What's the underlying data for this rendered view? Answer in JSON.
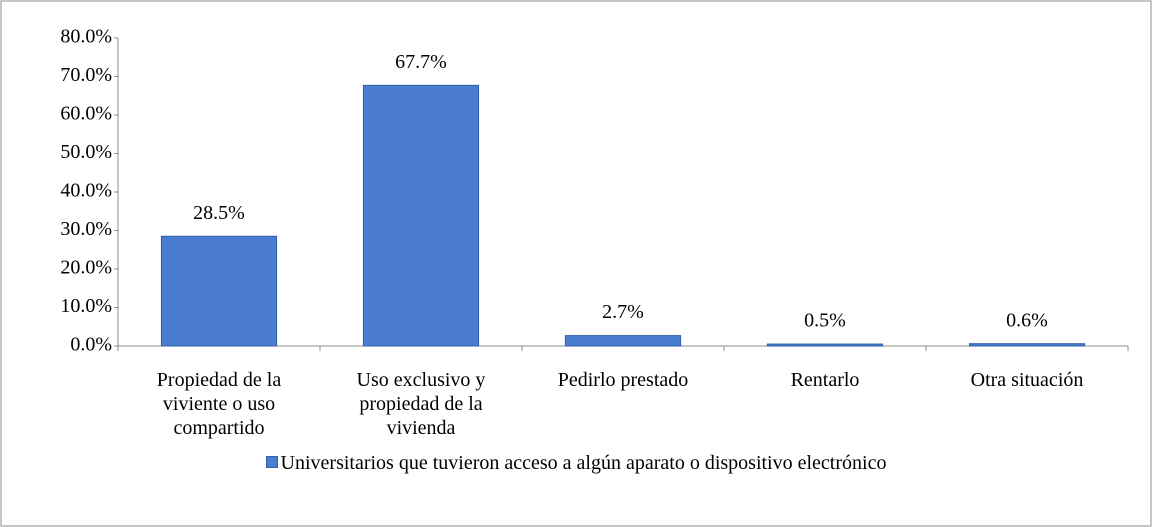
{
  "chart_data": {
    "type": "bar",
    "categories": [
      "Propiedad de la viviente o uso compartido",
      "Uso exclusivo y propiedad de la vivienda",
      "Pedirlo prestado",
      "Rentarlo",
      "Otra situación"
    ],
    "series": [
      {
        "name": "Universitarios que tuvieron acceso a algún aparato o dispositivo electrónico",
        "color": "#4a7dd0",
        "values": [
          28.5,
          67.7,
          2.7,
          0.5,
          0.6
        ],
        "value_labels": [
          "28.5%",
          "67.7%",
          "2.7%",
          "0.5%",
          "0.6%"
        ]
      }
    ],
    "ylim": [
      0,
      80
    ],
    "yticks": [
      {
        "value": 0,
        "label": "0.0%"
      },
      {
        "value": 10,
        "label": "10.0%"
      },
      {
        "value": 20,
        "label": "20.0%"
      },
      {
        "value": 30,
        "label": "30.0%"
      },
      {
        "value": 40,
        "label": "40.0%"
      },
      {
        "value": 50,
        "label": "50.0%"
      },
      {
        "value": 60,
        "label": "60.0%"
      },
      {
        "value": 70,
        "label": "70.0%"
      },
      {
        "value": 80,
        "label": "80.0%"
      }
    ],
    "grid": false,
    "legend": "bottom"
  }
}
